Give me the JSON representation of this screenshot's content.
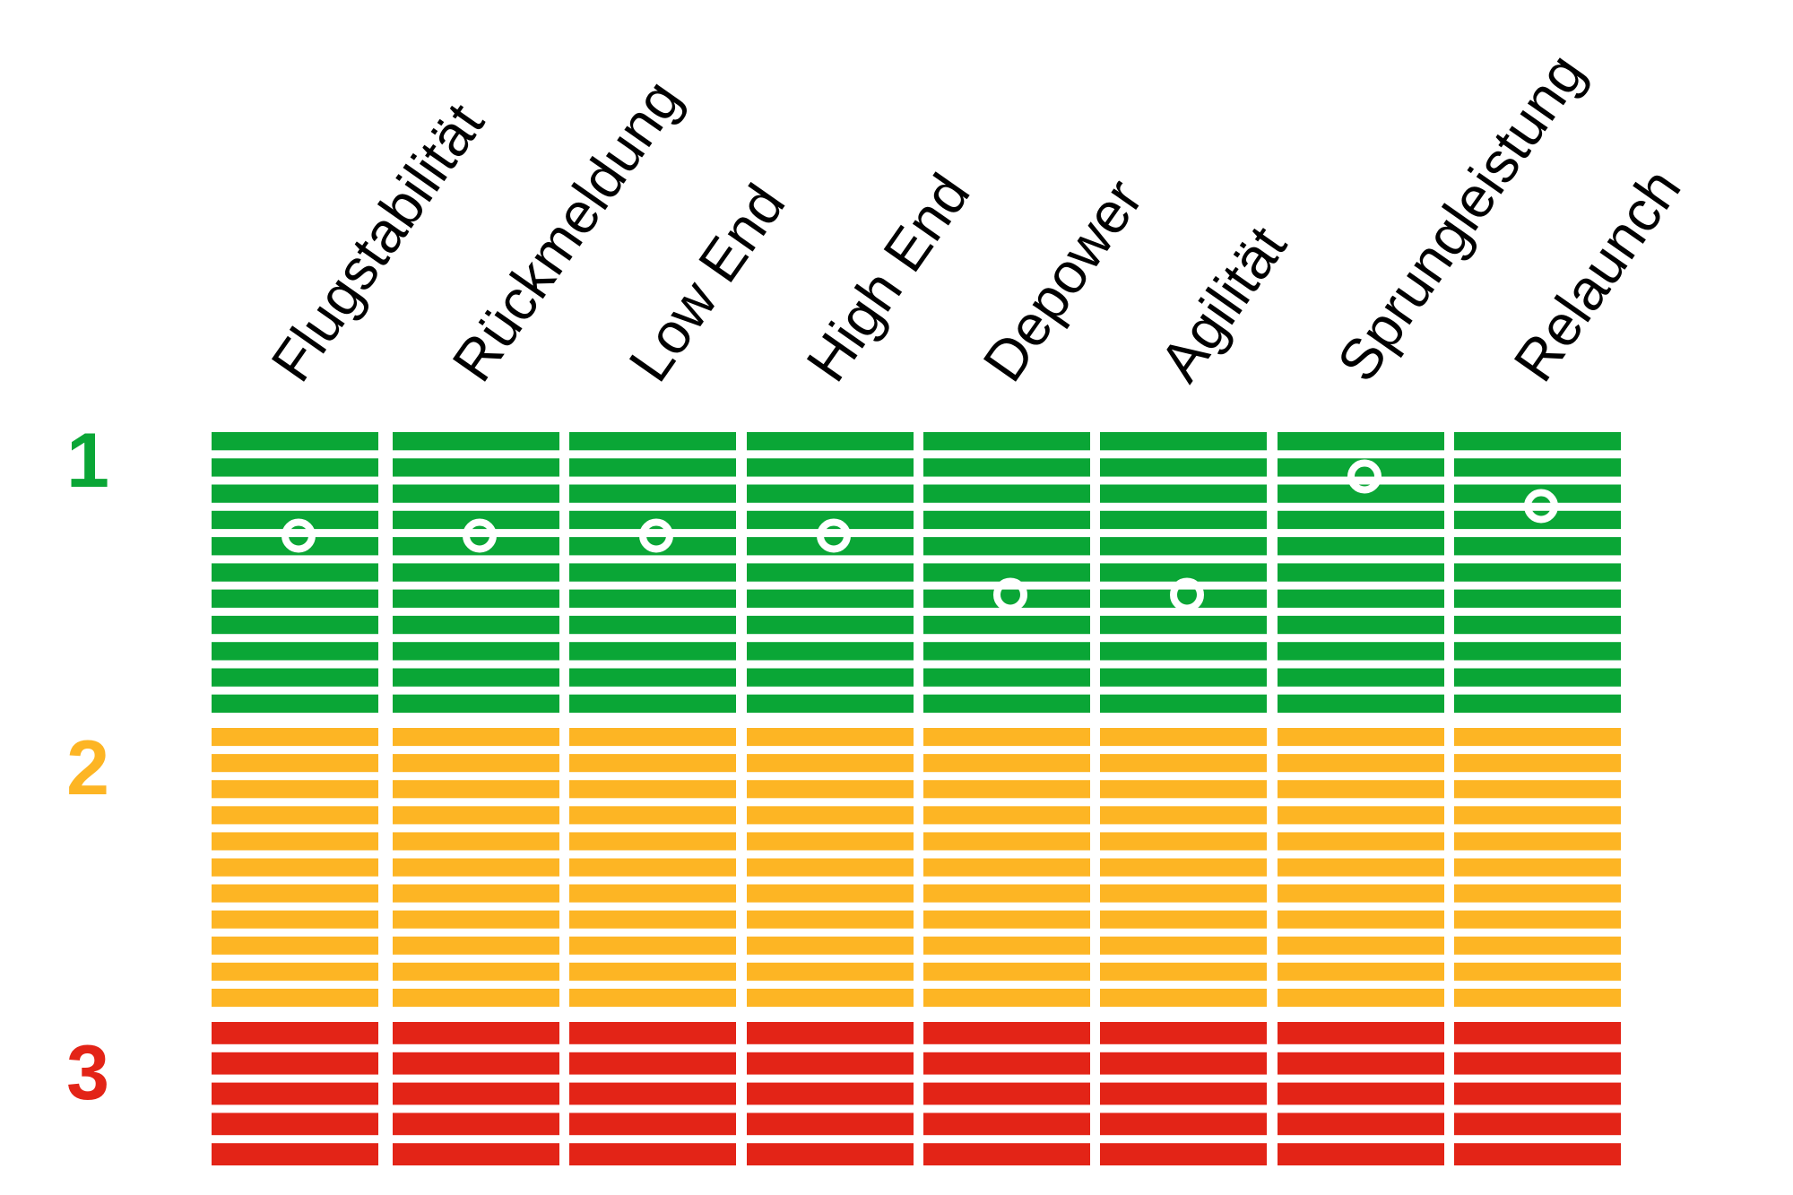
{
  "chart_data": {
    "type": "heatmap",
    "categories": [
      "Flugstabilität",
      "Rückmeldung",
      "Low End",
      "High End",
      "Depower",
      "Agilität",
      "Sprungleistung",
      "Relaunch"
    ],
    "row_labels": [
      "1",
      "2",
      "3"
    ],
    "zones": [
      {
        "label": "1",
        "color": "#0aa636"
      },
      {
        "label": "2",
        "color": "#fdb524"
      },
      {
        "label": "3",
        "color": "#e32417"
      }
    ],
    "values": [
      1.35,
      1.35,
      1.35,
      1.35,
      1.55,
      1.55,
      1.15,
      1.25
    ],
    "scale": {
      "best": 1,
      "worst": 3
    },
    "marker": "white-ring"
  }
}
